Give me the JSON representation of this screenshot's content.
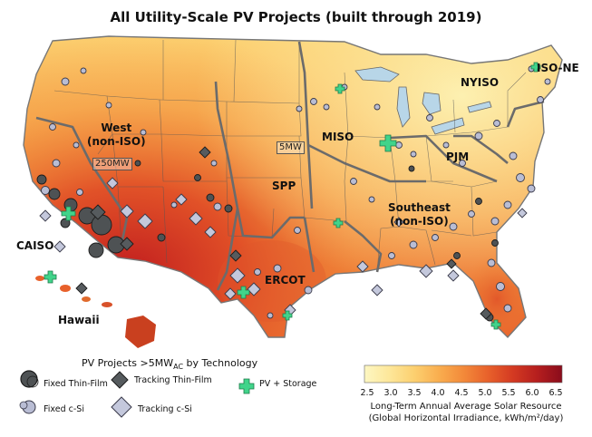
{
  "map": {
    "title": "All Utility-Scale PV Projects (built through 2019)",
    "regions": [
      {
        "key": "west",
        "label": "West\n(non-ISO)"
      },
      {
        "key": "caiso",
        "label": "CAISO"
      },
      {
        "key": "hawaii",
        "label": "Hawaii"
      },
      {
        "key": "spp",
        "label": "SPP"
      },
      {
        "key": "miso",
        "label": "MISO"
      },
      {
        "key": "ercot",
        "label": "ERCOT"
      },
      {
        "key": "pjm",
        "label": "PJM"
      },
      {
        "key": "southeast",
        "label": "Southeast\n(non-ISO)"
      },
      {
        "key": "nyiso",
        "label": "NYISO"
      },
      {
        "key": "isone",
        "label": "ISO-NE"
      }
    ],
    "size_tags": {
      "large": "250MW",
      "small": "5MW"
    },
    "legend": {
      "title_main": "PV Projects >5MW",
      "title_sub": "AC",
      "title_tail": " by Technology",
      "items": [
        {
          "label": "Fixed Thin-Film",
          "icon": "dark-circle"
        },
        {
          "label": "Tracking Thin-Film",
          "icon": "dark-diamond"
        },
        {
          "label": "PV + Storage",
          "icon": "green-cross"
        },
        {
          "label": "Fixed c-Si",
          "icon": "light-circle"
        },
        {
          "label": "Tracking c-Si",
          "icon": "light-diamond"
        }
      ]
    },
    "colorbar": {
      "ticks": [
        "2.5",
        "3.0",
        "3.5",
        "4.0",
        "4.5",
        "5.0",
        "5.5",
        "6.0",
        "6.5"
      ],
      "label_line1": "Long-Term Annual Average Solar Resource",
      "label_line2": "(Global Horizontal Irradiance, kWh/m²/day)",
      "colors": [
        "#fdf7c2",
        "#fde79a",
        "#fcd070",
        "#f9ae4f",
        "#f38a3a",
        "#e8612b",
        "#d43a22",
        "#b51e1e",
        "#8a0c1c"
      ]
    }
  }
}
